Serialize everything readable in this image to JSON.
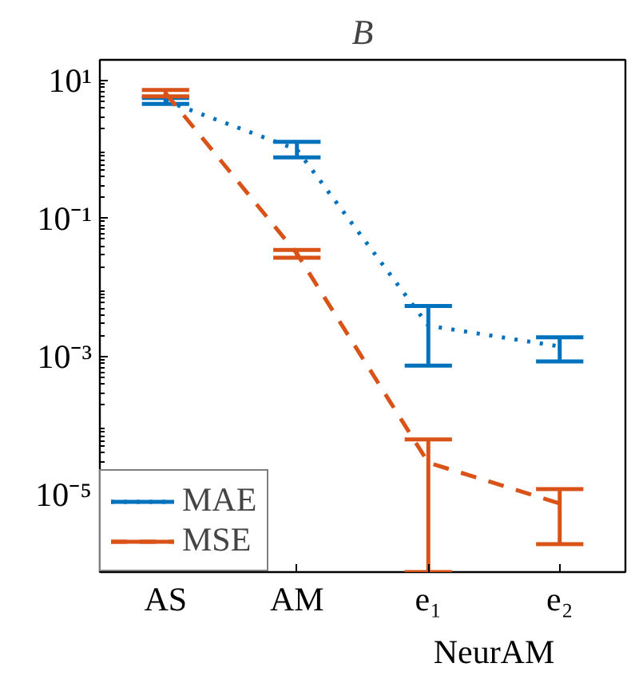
{
  "chart_data": {
    "type": "line",
    "title": "B",
    "categories": [
      "AS",
      "AM",
      "e₁",
      "e₂"
    ],
    "annotations": [
      "NeurAM"
    ],
    "log": true,
    "ylim": [
      7.5e-07,
      20
    ],
    "yticks": [
      {
        "value": 10,
        "label": "10¹"
      },
      {
        "value": 0.1,
        "label": "10⁻¹"
      },
      {
        "value": 0.001,
        "label": "10⁻³"
      },
      {
        "value": 1e-05,
        "label": "10⁻⁵"
      }
    ],
    "grid": false,
    "legend": "bottom left",
    "marker": "none",
    "series": [
      {
        "name": "MAE",
        "color": "#0072bd",
        "line_style": "dotted",
        "values": [
          5.1,
          1.0,
          0.0028,
          0.0014
        ],
        "errors": [
          [
            4.6,
            5.6
          ],
          [
            0.77,
            1.3
          ],
          [
            0.00074,
            0.0054
          ],
          [
            0.00085,
            0.0019
          ]
        ]
      },
      {
        "name": "MSE",
        "color": "#d95319",
        "line_style": "dashed",
        "values": [
          6.6,
          0.031,
          2.9e-05,
          7.4e-06
        ],
        "errors": [
          [
            5.9,
            7.3
          ],
          [
            0.027,
            0.035
          ],
          [
            7.5e-07,
            6.3e-05
          ],
          [
            1.9e-06,
            1.2e-05
          ]
        ]
      }
    ]
  }
}
